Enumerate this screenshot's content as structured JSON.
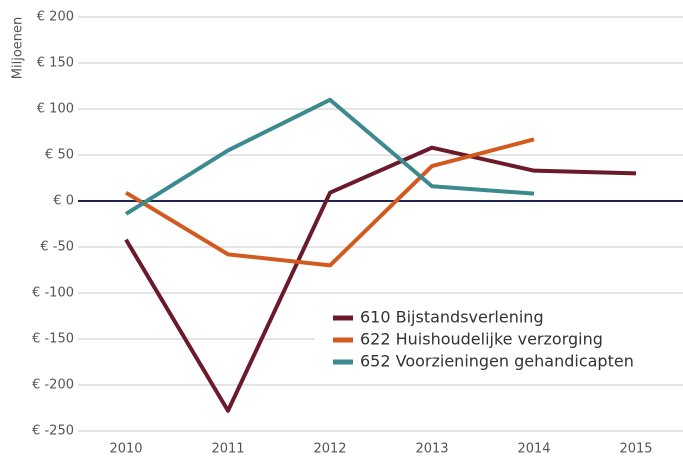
{
  "chart_data": {
    "type": "line",
    "y_axis_label": "Miljoenen",
    "categories": [
      "2010",
      "2011",
      "2012",
      "2013",
      "2014",
      "2015"
    ],
    "series": [
      {
        "name": "610 Bijstandsverlening",
        "color": "#6b1a2b",
        "values": [
          -42,
          -228,
          9,
          58,
          33,
          30
        ]
      },
      {
        "name": "622 Huishoudelijke verzorging",
        "color": "#d35a1e",
        "values": [
          9,
          -58,
          -70,
          38,
          67,
          null
        ]
      },
      {
        "name": "652 Voorzieningen gehandicapten",
        "color": "#3b8a8f",
        "values": [
          -14,
          55,
          110,
          16,
          8,
          null
        ]
      }
    ],
    "ylim": [
      -250,
      200
    ],
    "yticks": [
      {
        "value": -250,
        "label": "€ -250"
      },
      {
        "value": -200,
        "label": "€ -200"
      },
      {
        "value": -150,
        "label": "€ -150"
      },
      {
        "value": -100,
        "label": "€ -100"
      },
      {
        "value": -50,
        "label": "€ -50"
      },
      {
        "value": 0,
        "label": "€ 0"
      },
      {
        "value": 50,
        "label": "€ 50"
      },
      {
        "value": 100,
        "label": "€ 100"
      },
      {
        "value": 150,
        "label": "€ 150"
      },
      {
        "value": 200,
        "label": "€ 200"
      }
    ],
    "grid": true,
    "legend": "lower right"
  }
}
